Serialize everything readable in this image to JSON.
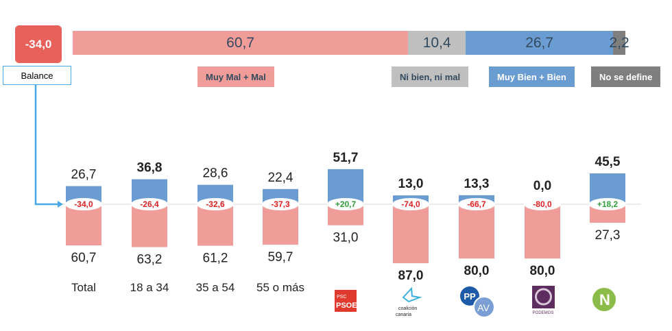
{
  "summary": {
    "balance_value": "-34,0",
    "balance_label": "Balance",
    "segments": [
      {
        "value": 60.7,
        "label": "60,7",
        "color": "#f09c99"
      },
      {
        "value": 10.4,
        "label": "10,4",
        "color": "#bfbfbf"
      },
      {
        "value": 26.7,
        "label": "26,7",
        "color": "#6a9bd1"
      },
      {
        "value": 2.2,
        "label": "2,2",
        "color": "#7f7f7f"
      }
    ],
    "legend": [
      {
        "label": "Muy Mal + Mal",
        "color": "#f09c99",
        "text": "#334a5e"
      },
      {
        "label": "Ni bien, ni mal",
        "color": "#bfbfbf",
        "text": "#334a5e"
      },
      {
        "label": "Muy Bien + Bien",
        "color": "#6a9bd1",
        "text": "#ffffff"
      },
      {
        "label": "No se define",
        "color": "#7f7f7f",
        "text": "#ffffff"
      }
    ]
  },
  "chart_data": {
    "type": "bar",
    "categories": [
      "Total",
      "18 a 34",
      "35 a 54",
      "55 o más",
      "PSC-PSOE",
      "Coalición Canaria",
      "PP-AV",
      "Podemos",
      "NC"
    ],
    "series": [
      {
        "name": "Muy Bien + Bien",
        "color": "#6a9bd1",
        "values": [
          26.7,
          36.8,
          28.6,
          22.4,
          51.7,
          13.0,
          13.3,
          0.0,
          45.5
        ],
        "labels": [
          "26,7",
          "36,8",
          "28,6",
          "22,4",
          "51,7",
          "13,0",
          "13,3",
          "0,0",
          "45,5"
        ]
      },
      {
        "name": "Muy Mal + Mal",
        "color": "#f09c99",
        "values": [
          60.7,
          63.2,
          61.2,
          59.7,
          31.0,
          87.0,
          80.0,
          80.0,
          27.3
        ],
        "labels": [
          "60,7",
          "63,2",
          "61,2",
          "59,7",
          "31,0",
          "87,0",
          "80,0",
          "80,0",
          "27,3"
        ]
      }
    ],
    "balance": [
      "-34,0",
      "-26,4",
      "-32,6",
      "-37,3",
      "+20,7",
      "-74,0",
      "-66,7",
      "-80,0",
      "+18,2"
    ],
    "bold": [
      false,
      true,
      false,
      false,
      true,
      true,
      true,
      true,
      true
    ],
    "text_labels": [
      "Total",
      "18 a 34",
      "35 a 54",
      "55 o más"
    ],
    "logos": {
      "psoe": [
        "PSC",
        "PSOE"
      ],
      "cc": [
        "coalición",
        "canaria"
      ],
      "pp": [
        "PP",
        "AV"
      ],
      "podemos": "PODEMOS",
      "nc": "N"
    }
  }
}
